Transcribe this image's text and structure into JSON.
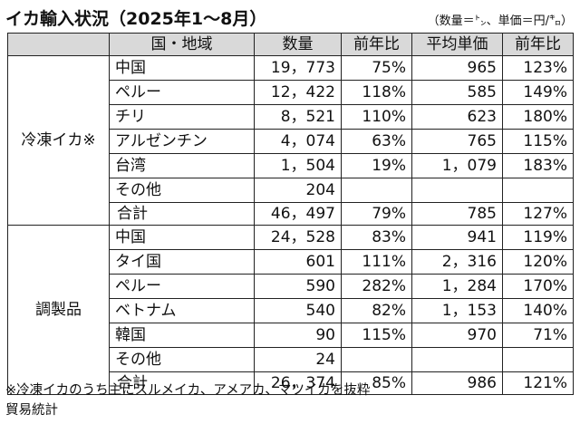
{
  "title": "イカ輸入状況（2025年1～8月）",
  "unit_note": "（数量＝㌧、単価＝円/㌔）",
  "headers": [
    "国・地域",
    "数量",
    "前年比",
    "平均単価",
    "前年比"
  ],
  "sections": [
    {
      "category": "冷凍イカ※",
      "rows": [
        [
          "中国",
          "19，773",
          "75%",
          "965",
          "123%"
        ],
        [
          "ペルー",
          "12，422",
          "118%",
          "585",
          "149%"
        ],
        [
          "チリ",
          "8，521",
          "110%",
          "623",
          "180%"
        ],
        [
          "アルゼンチン",
          "4，074",
          "63%",
          "765",
          "115%"
        ],
        [
          "台湾",
          "1，504",
          "19%",
          "1，079",
          "183%"
        ],
        [
          "その他",
          "204",
          "",
          "",
          ""
        ],
        [
          "合計",
          "46，497",
          "79%",
          "785",
          "127%"
        ]
      ]
    },
    {
      "category": "調製品",
      "rows": [
        [
          "中国",
          "24，528",
          "83%",
          "941",
          "119%"
        ],
        [
          "タイ国",
          "601",
          "111%",
          "2，316",
          "120%"
        ],
        [
          "ペルー",
          "590",
          "282%",
          "1，284",
          "170%"
        ],
        [
          "ベトナム",
          "540",
          "82%",
          "1，153",
          "140%"
        ],
        [
          "韓国",
          "90",
          "115%",
          "970",
          "71%"
        ],
        [
          "その他",
          "24",
          "",
          "",
          ""
        ],
        [
          "合計",
          "26，374",
          "85%",
          "986",
          "121%"
        ]
      ]
    }
  ],
  "notes": [
    "※冷凍イカのうち主にスルメイカ、アメアカ、マツイカを抜粋",
    "貿易統計"
  ]
}
